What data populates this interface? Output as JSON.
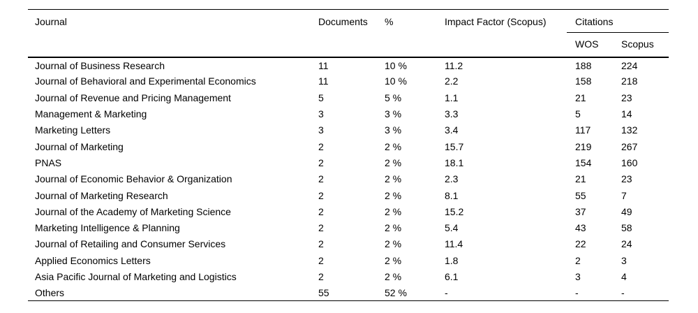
{
  "table": {
    "header": {
      "journal": "Journal",
      "documents": "Documents",
      "percent": "%",
      "impact_factor": "Impact Factor (Scopus)",
      "citations": "Citations",
      "citations_sub": {
        "wos": "WOS",
        "scopus": "Scopus"
      }
    },
    "column_order": [
      "journal",
      "documents",
      "percent",
      "impact_factor",
      "wos",
      "scopus"
    ],
    "rows": [
      {
        "journal": "Journal of Business Research",
        "documents": "11",
        "percent": "10 %",
        "impact_factor": "11.2",
        "wos": "188",
        "scopus": "224"
      },
      {
        "journal": "Journal of Behavioral and Experimental Economics",
        "documents": "11",
        "percent": "10 %",
        "impact_factor": "2.2",
        "wos": "158",
        "scopus": "218"
      },
      {
        "journal": "Journal of Revenue and Pricing Management",
        "documents": "5",
        "percent": "5 %",
        "impact_factor": "1.1",
        "wos": "21",
        "scopus": "23"
      },
      {
        "journal": "Management & Marketing",
        "documents": "3",
        "percent": "3 %",
        "impact_factor": "3.3",
        "wos": "5",
        "scopus": "14"
      },
      {
        "journal": "Marketing Letters",
        "documents": "3",
        "percent": "3 %",
        "impact_factor": "3.4",
        "wos": "117",
        "scopus": "132"
      },
      {
        "journal": "Journal of Marketing",
        "documents": "2",
        "percent": "2 %",
        "impact_factor": "15.7",
        "wos": "219",
        "scopus": "267"
      },
      {
        "journal": "PNAS",
        "documents": "2",
        "percent": "2 %",
        "impact_factor": "18.1",
        "wos": "154",
        "scopus": "160"
      },
      {
        "journal": "Journal of Economic Behavior & Organization",
        "documents": "2",
        "percent": "2 %",
        "impact_factor": "2.3",
        "wos": "21",
        "scopus": "23"
      },
      {
        "journal": "Journal of Marketing Research",
        "documents": "2",
        "percent": "2 %",
        "impact_factor": "8.1",
        "wos": "55",
        "scopus": "7"
      },
      {
        "journal": "Journal of the Academy of Marketing Science",
        "documents": "2",
        "percent": "2 %",
        "impact_factor": "15.2",
        "wos": "37",
        "scopus": "49"
      },
      {
        "journal": "Marketing Intelligence & Planning",
        "documents": "2",
        "percent": "2 %",
        "impact_factor": "5.4",
        "wos": "43",
        "scopus": "58"
      },
      {
        "journal": "Journal of Retailing and Consumer Services",
        "documents": "2",
        "percent": "2 %",
        "impact_factor": "11.4",
        "wos": "22",
        "scopus": "24"
      },
      {
        "journal": "Applied Economics Letters",
        "documents": "2",
        "percent": "2 %",
        "impact_factor": "1.8",
        "wos": "2",
        "scopus": "3"
      },
      {
        "journal": "Asia Pacific Journal of Marketing and Logistics",
        "documents": "2",
        "percent": "2 %",
        "impact_factor": "6.1",
        "wos": "3",
        "scopus": "4"
      },
      {
        "journal": "Others",
        "documents": "55",
        "percent": "52 %",
        "impact_factor": "-",
        "wos": "-",
        "scopus": "-"
      }
    ]
  }
}
